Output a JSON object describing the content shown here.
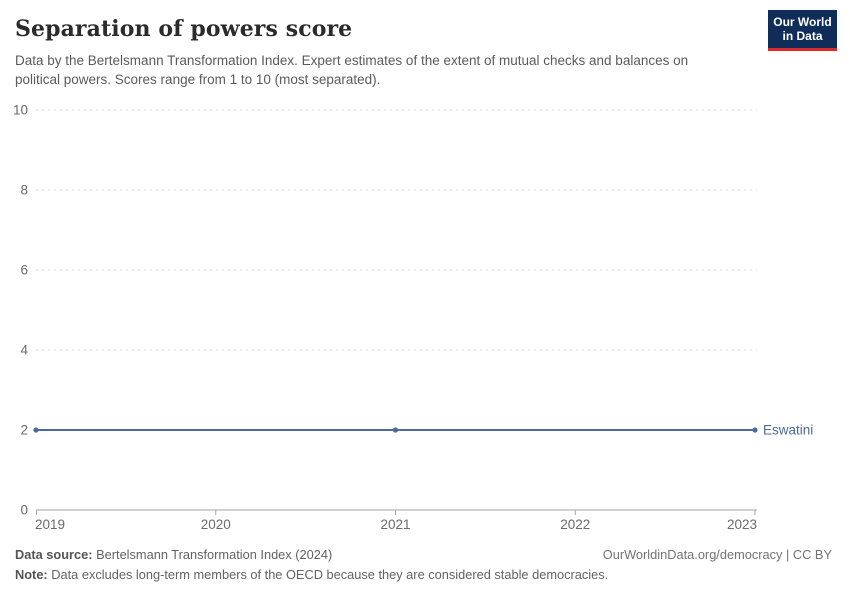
{
  "header": {
    "title": "Separation of powers score",
    "subtitle": "Data by the Bertelsmann Transformation Index. Expert estimates of the extent of mutual checks and balances on political powers. Scores range from 1 to 10 (most separated)."
  },
  "logo": {
    "line1": "Our World",
    "line2": "in Data",
    "background": "#102d5a",
    "accent": "#dc2a2a"
  },
  "chart_data": {
    "type": "line",
    "title": "Separation of powers score",
    "x": [
      2019,
      2021,
      2023
    ],
    "series": [
      {
        "name": "Eswatini",
        "values": [
          2,
          2,
          2
        ],
        "color": "#4c6a9c"
      }
    ],
    "xlabel": "",
    "ylabel": "",
    "ylim": [
      0,
      10
    ],
    "yticks": [
      0,
      2,
      4,
      6,
      8,
      10
    ],
    "xticks": [
      2019,
      2020,
      2021,
      2022,
      2023
    ],
    "grid": "horizontal-dashed",
    "legend": "end-of-line-label",
    "marker": "point"
  },
  "colors": {
    "grid": "#dcdcdc",
    "axis": "#a3a3a3",
    "tick_label": "#6b6b6b"
  },
  "footer": {
    "source_label": "Data source:",
    "source_text": "Bertelsmann Transformation Index (2024)",
    "credit": "OurWorldinData.org/democracy | CC BY",
    "note_label": "Note:",
    "note_text": "Data excludes long-term members of the OECD because they are considered stable democracies."
  }
}
